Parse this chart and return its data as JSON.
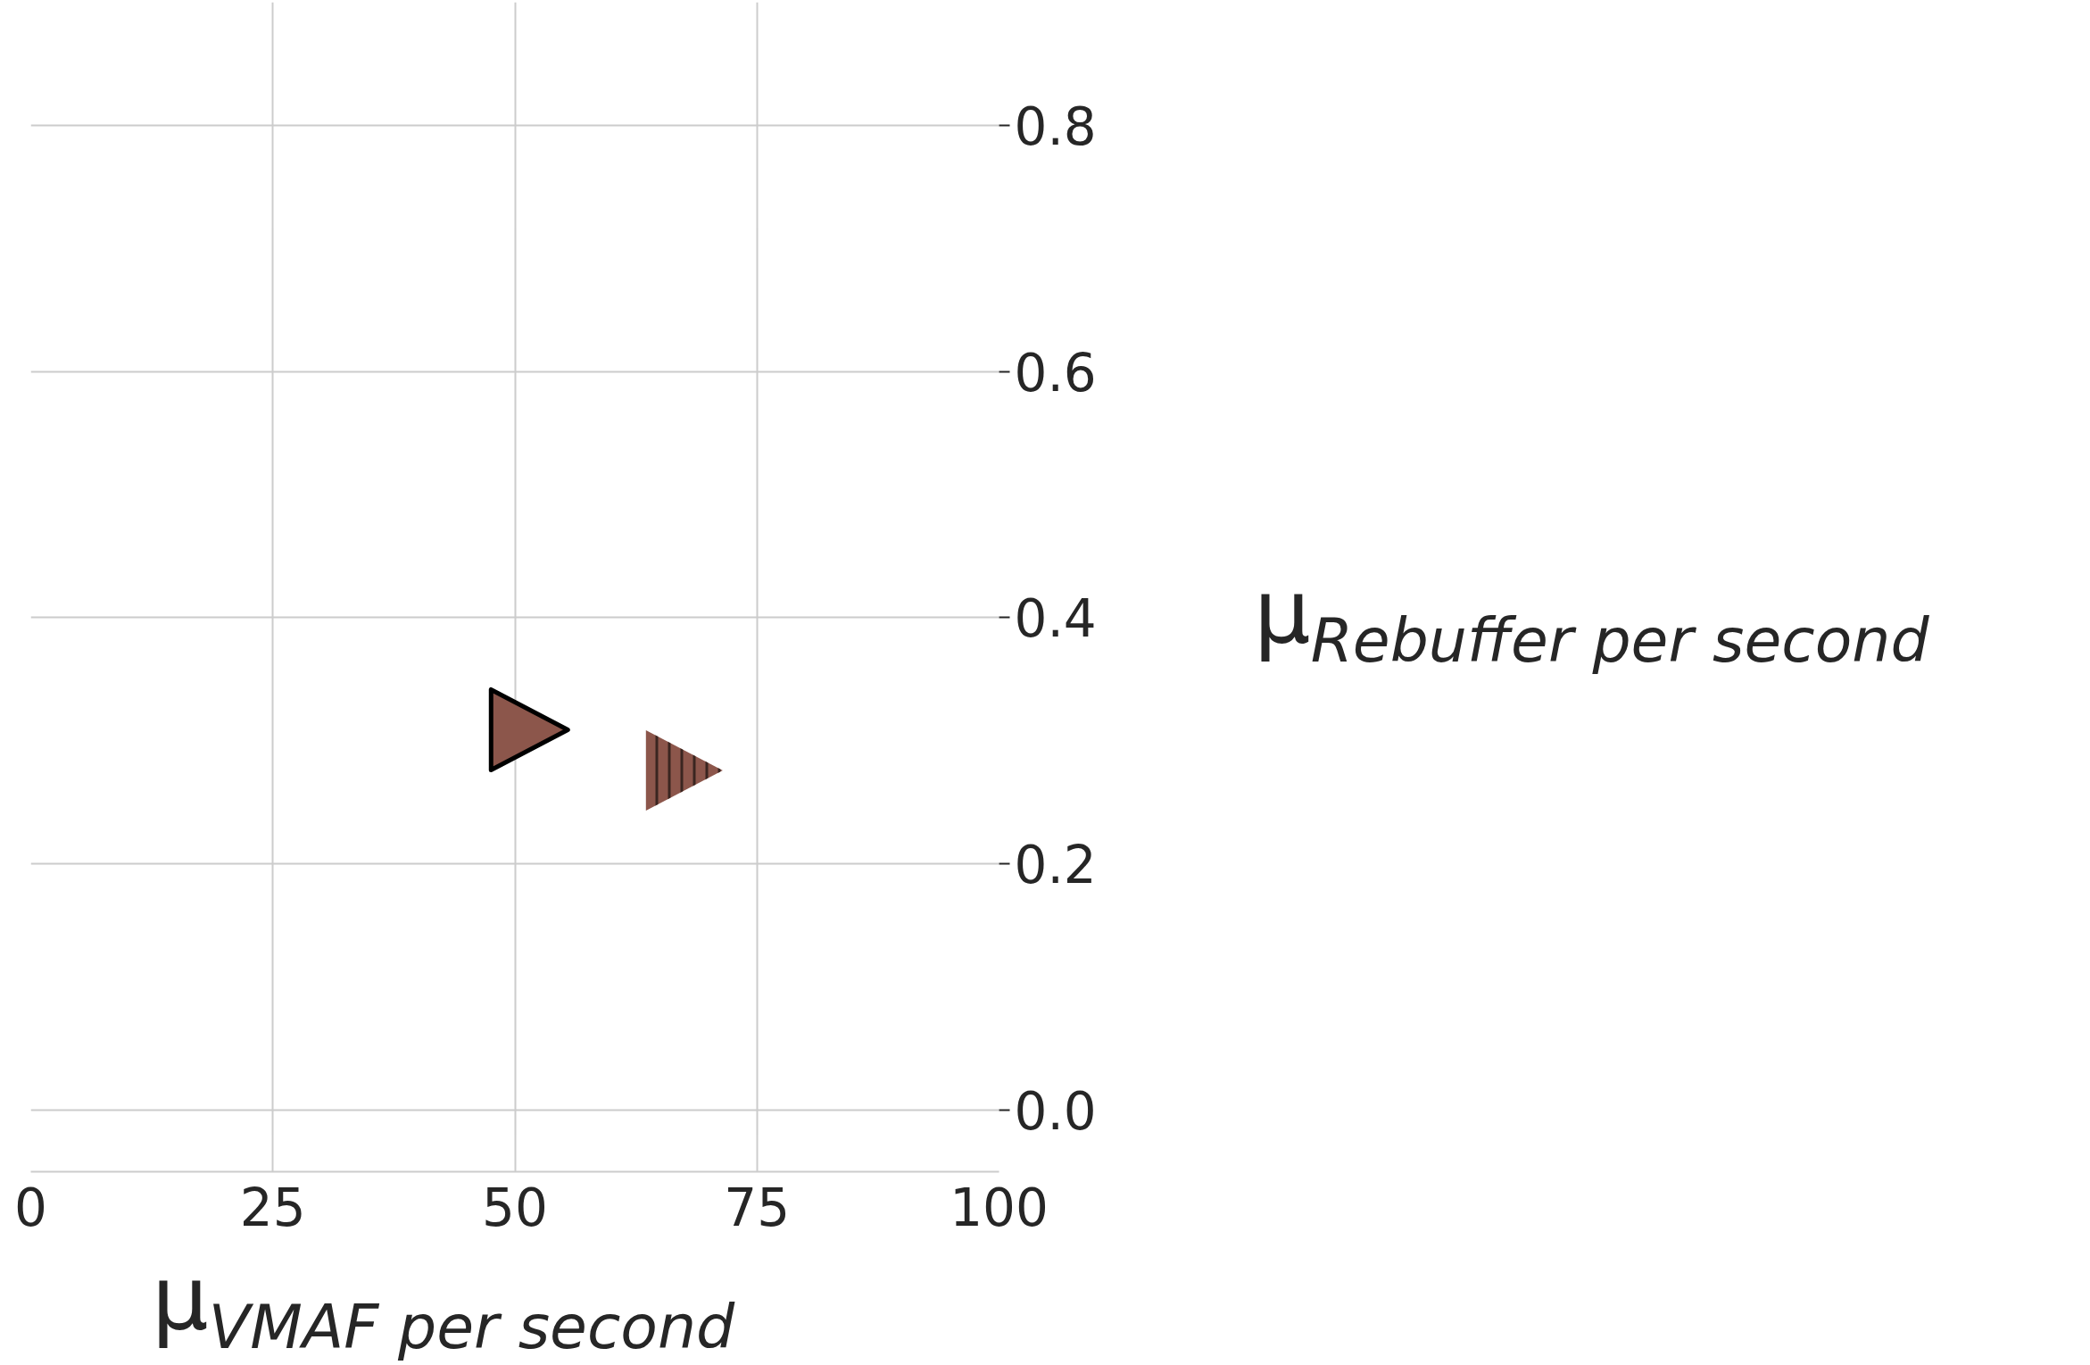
{
  "chart_data": {
    "type": "scatter",
    "xlabel": "μ$_{VMAF per second}$",
    "ylabel": "μ$_{Rebuffer per second}$",
    "series": [
      {
        "color": "#8c564b",
        "x": [
          51.5
        ],
        "values": [
          0.309
        ]
      },
      {
        "color": "#8c564b",
        "x": [
          67.5
        ],
        "values": [
          0.276
        ]
      }
    ],
    "marker": "triangle",
    "xlim": [
      0,
      100
    ],
    "ylim": [
      -0.05,
      0.9
    ],
    "xticks": [
      0,
      25,
      50,
      75,
      100
    ],
    "yticks": [
      {
        "value": 0.0,
        "label": "0.0"
      },
      {
        "value": 0.2,
        "label": "0.2"
      },
      {
        "value": 0.4,
        "label": "0.4"
      },
      {
        "value": 0.6,
        "label": "0.6"
      },
      {
        "value": 0.8,
        "label": "0.8"
      }
    ],
    "grid": true
  }
}
